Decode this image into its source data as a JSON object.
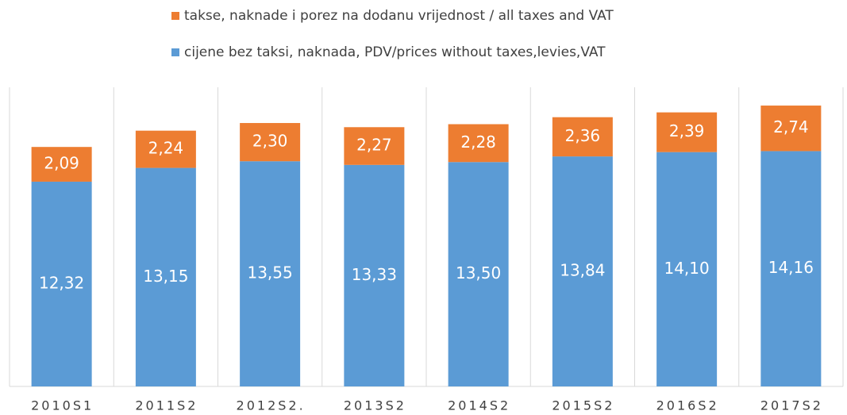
{
  "chart_data": {
    "type": "stacked_bar",
    "categories": [
      "2010S1",
      "2011S2",
      "2012S2.",
      "2013S2",
      "2014S2",
      "2015S2",
      "2016S2",
      "2017S2"
    ],
    "series": [
      {
        "name": "cijene bez taksi, naknada, PDV/prices without taxes,levies,VAT",
        "color": "#5b9bd5",
        "values": [
          12.32,
          13.15,
          13.55,
          13.33,
          13.5,
          13.84,
          14.1,
          14.16
        ],
        "value_labels": [
          "12,32",
          "13,15",
          "13,55",
          "13,33",
          "13,50",
          "13,84",
          "14,10",
          "14,16"
        ]
      },
      {
        "name": "takse, naknade i porez na dodanu vrijednost / all taxes and VAT",
        "color": "#ed7d31",
        "values": [
          2.09,
          2.24,
          2.3,
          2.27,
          2.28,
          2.36,
          2.39,
          2.74
        ],
        "value_labels": [
          "2,09",
          "2,24",
          "2,30",
          "2,27",
          "2,28",
          "2,36",
          "2,39",
          "2,74"
        ]
      }
    ],
    "ylim": [
      0,
      18
    ],
    "legend": "top"
  }
}
